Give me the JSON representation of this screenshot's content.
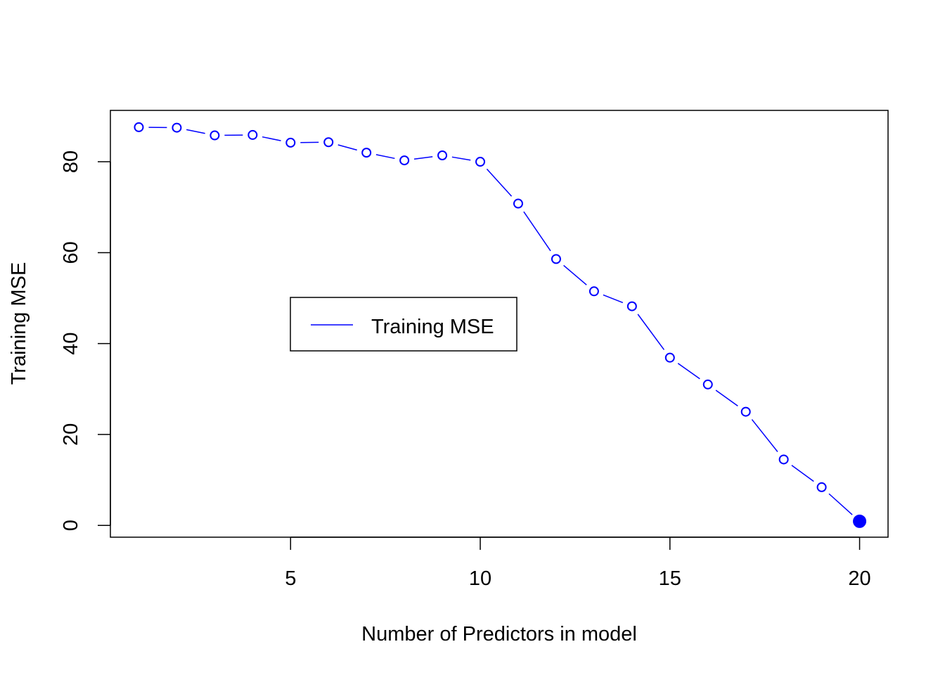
{
  "chart_data": {
    "type": "line",
    "title": "",
    "xlabel": "Number of Predictors in model",
    "ylabel": "Training MSE",
    "xlim": [
      0.25,
      20.75
    ],
    "ylim": [
      -2.6,
      91.3
    ],
    "x_ticks": [
      5,
      10,
      15,
      20
    ],
    "y_ticks": [
      0,
      20,
      40,
      60,
      80
    ],
    "grid": false,
    "legend": {
      "position": "center-left",
      "entries": [
        {
          "label": "Training MSE",
          "color": "#0000ff"
        }
      ]
    },
    "series": [
      {
        "name": "Training MSE",
        "color": "#0000ff",
        "x": [
          1,
          2,
          3,
          4,
          5,
          6,
          7,
          8,
          9,
          10,
          11,
          12,
          13,
          14,
          15,
          16,
          17,
          18,
          19,
          20
        ],
        "values": [
          87.6,
          87.5,
          85.8,
          85.9,
          84.2,
          84.3,
          82.0,
          80.3,
          81.4,
          80.0,
          70.8,
          58.6,
          51.5,
          48.2,
          36.9,
          31.0,
          25.0,
          14.5,
          8.4,
          0.9
        ],
        "highlight_min_index": 19
      }
    ]
  }
}
